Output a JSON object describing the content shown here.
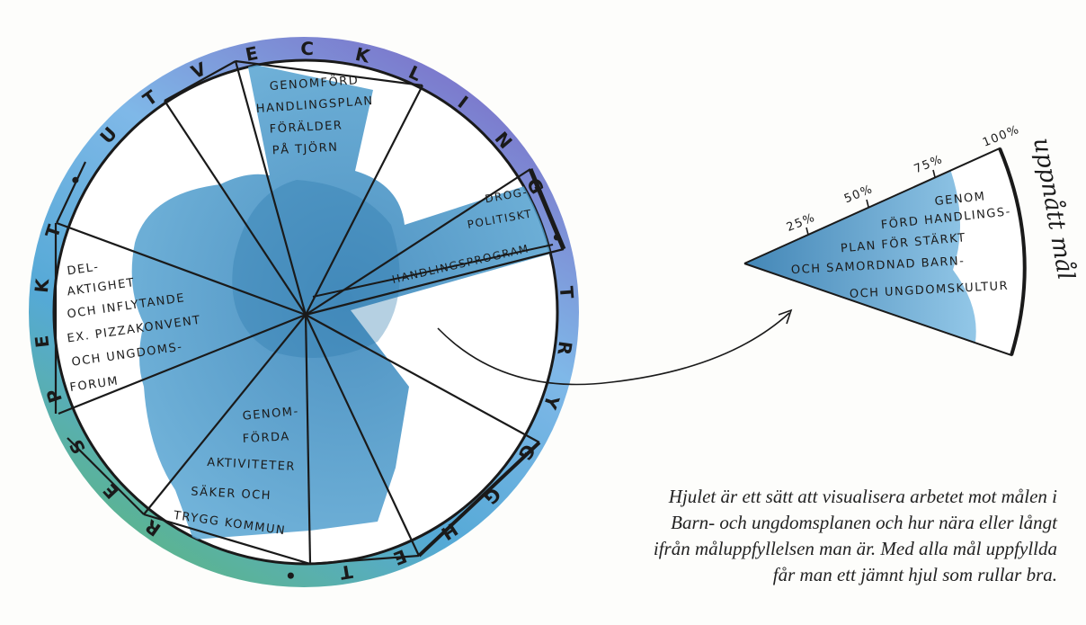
{
  "wheel": {
    "ring_letters": [
      "R",
      "E",
      "S",
      "P",
      "E",
      "K",
      "T",
      "•",
      "U",
      "T",
      "V",
      "E",
      "C",
      "K",
      "L",
      "I",
      "N",
      "G",
      "•",
      "T",
      "R",
      "Y",
      "G",
      "G",
      "H",
      "E",
      "T",
      "•"
    ],
    "segments": [
      {
        "lines": [
          "GENOMFÖRD",
          "HANDLINGSPLAN",
          "FÖRÄLDER",
          "PÅ TJÖRN"
        ]
      },
      {
        "lines": [
          "DROG-",
          "POLITISKT",
          "HANDLINGSPROGRAM"
        ]
      },
      {
        "lines": [
          "DEL-",
          "AKTIGHET",
          "OCH INFLYTANDE",
          "EX. PIZZAKONVENT",
          "OCH UNGDOMS-",
          "FORUM"
        ]
      },
      {
        "lines": [
          "GENOM-",
          "FÖRDA",
          "AKTIVITETER",
          "SÄKER OCH",
          "TRYGG KOMMUN"
        ]
      }
    ]
  },
  "wedge": {
    "scale_labels": [
      "25%",
      "50%",
      "75%",
      "100%"
    ],
    "text_lines": [
      "GENOM",
      "FÖRD HANDLINGS-",
      "PLAN FÖR STÄRKT",
      "OCH SAMORDNAD BARN-",
      "OCH UNGDOMSKULTUR"
    ],
    "side_label": "uppnått mål"
  },
  "caption": "Hjulet är ett sätt att visualisera arbetet mot målen i Barn- och ungdomsplanen och hur nära eller långt ifrån måluppfyllelsen man är. Med alla mål uppfyllda får man ett jämnt hjul som rullar bra.",
  "colors": {
    "ring_purple": "#7f7fcf",
    "ring_blue": "#6cb7e3",
    "ring_green": "#5fb48f",
    "fill_blue": "#3f8fc4",
    "ink": "#1a1a1a"
  }
}
